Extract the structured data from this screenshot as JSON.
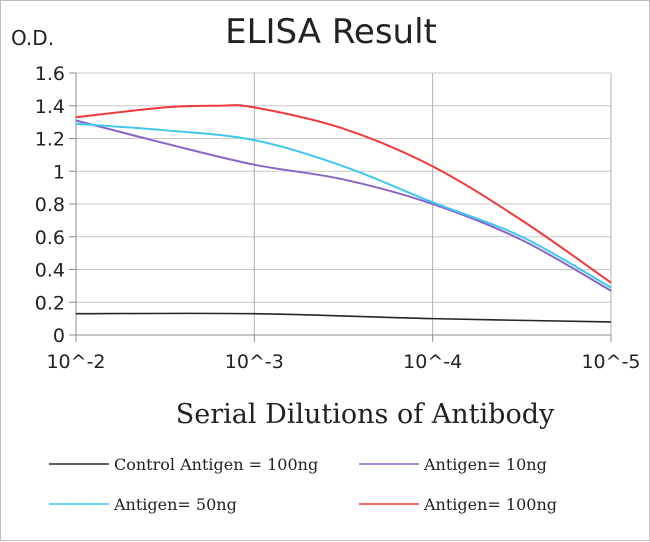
{
  "chart_data": {
    "type": "line",
    "title": "ELISA Result",
    "ylabel": "O.D.",
    "xlabel": "Serial Dilutions of Antibody",
    "categories": [
      "10^-2",
      "10^-3",
      "10^-4",
      "10^-5"
    ],
    "ylim": [
      0,
      1.6
    ],
    "yticks": [
      "0",
      "0.2",
      "0.4",
      "0.6",
      "0.8",
      "1",
      "1.2",
      "1.4",
      "1.6"
    ],
    "grid": true,
    "legend_position": "bottom",
    "series": [
      {
        "name": "Control Antigen = 100ng",
        "color": "#262626",
        "points": [
          [
            0,
            0.13
          ],
          [
            1,
            0.13
          ],
          [
            2,
            0.1
          ],
          [
            3,
            0.08
          ]
        ]
      },
      {
        "name": "Antigen= 10ng",
        "color": "#8b64c8",
        "points": [
          [
            0,
            1.31
          ],
          [
            0.5,
            1.17
          ],
          [
            1,
            1.04
          ],
          [
            1.5,
            0.95
          ],
          [
            2,
            0.8
          ],
          [
            2.5,
            0.58
          ],
          [
            3,
            0.27
          ]
        ]
      },
      {
        "name": "Antigen= 50ng",
        "color": "#3fc8ee",
        "points": [
          [
            0,
            1.29
          ],
          [
            0.5,
            1.25
          ],
          [
            1,
            1.19
          ],
          [
            1.5,
            1.03
          ],
          [
            2,
            0.81
          ],
          [
            2.5,
            0.6
          ],
          [
            3,
            0.29
          ]
        ]
      },
      {
        "name": "Antigen= 100ng",
        "color": "#ee3a3a",
        "points": [
          [
            0,
            1.33
          ],
          [
            0.5,
            1.39
          ],
          [
            0.8,
            1.4
          ],
          [
            1,
            1.39
          ],
          [
            1.5,
            1.26
          ],
          [
            2,
            1.03
          ],
          [
            2.5,
            0.7
          ],
          [
            3,
            0.32
          ]
        ]
      }
    ]
  }
}
